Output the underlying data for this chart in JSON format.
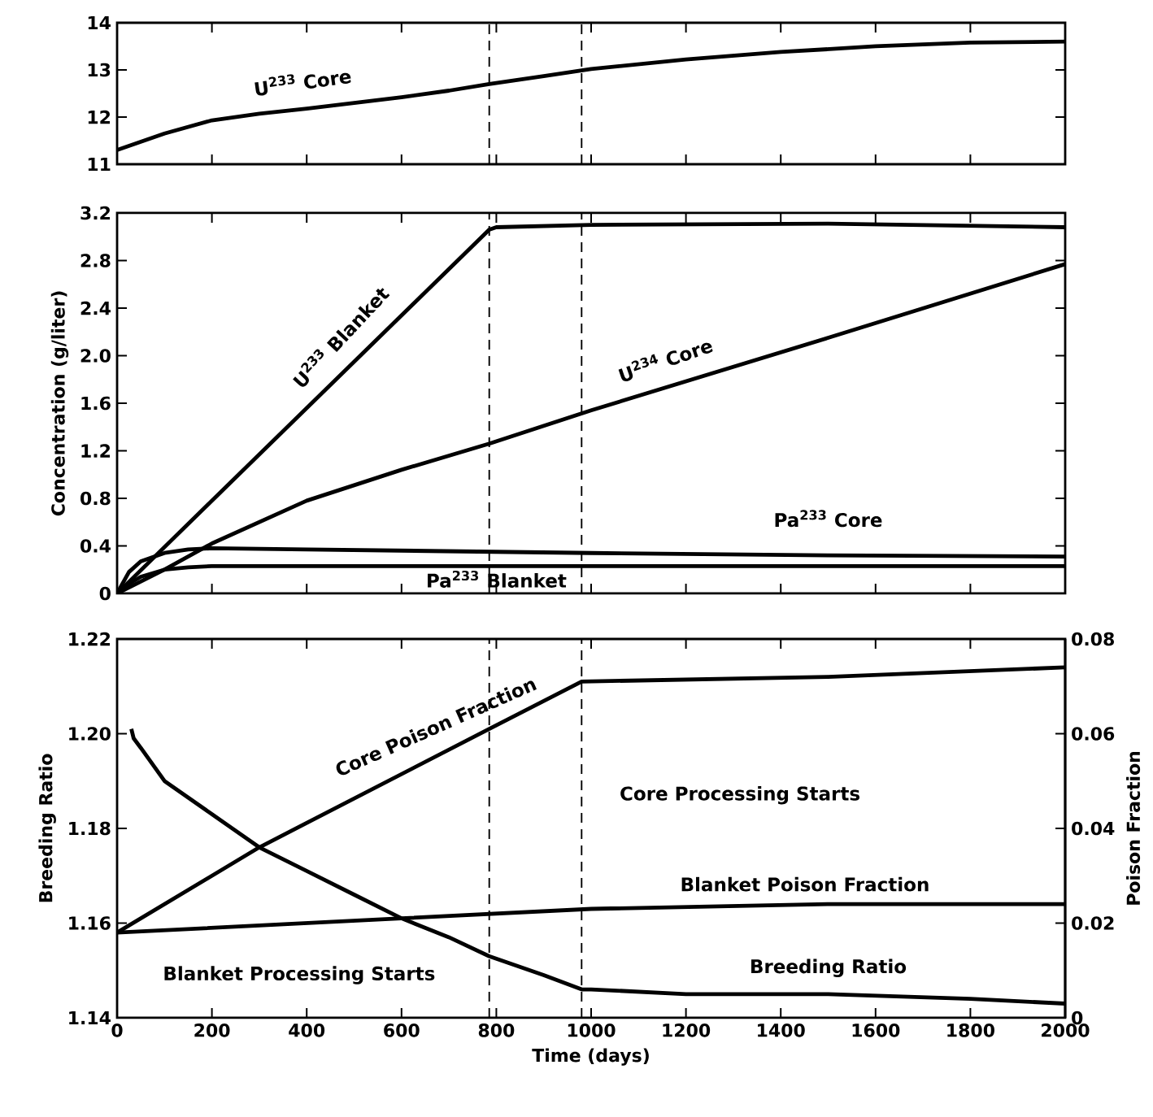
{
  "chart_data": [
    {
      "type": "line",
      "xlim": [
        0,
        2000
      ],
      "xticks": [
        0,
        200,
        400,
        600,
        800,
        1000,
        1200,
        1400,
        1600,
        1800,
        2000
      ],
      "ylim": [
        11,
        14
      ],
      "yticks": [
        11,
        12,
        13,
        14
      ],
      "tick_labels": "y",
      "ref_lines": [
        {
          "axis": "x",
          "value": 785,
          "color": "#000000",
          "line_style": "dashed"
        },
        {
          "axis": "x",
          "value": 980,
          "color": "#000000",
          "line_style": "dashed"
        }
      ],
      "series": [
        {
          "name": "U$^{233}$ Core",
          "color": "#000000",
          "x": [
            0,
            100,
            200,
            300,
            400,
            500,
            600,
            700,
            785,
            900,
            1000,
            1200,
            1400,
            1600,
            1800,
            2000
          ],
          "values": [
            11.3,
            11.65,
            11.93,
            12.07,
            12.18,
            12.3,
            12.42,
            12.56,
            12.7,
            12.87,
            13.02,
            13.22,
            13.38,
            13.5,
            13.58,
            13.6
          ]
        }
      ]
    },
    {
      "type": "line",
      "xlim": [
        0,
        2000
      ],
      "xticks": [
        0,
        200,
        400,
        600,
        800,
        1000,
        1200,
        1400,
        1600,
        1800,
        2000
      ],
      "ylim": [
        0,
        3.2
      ],
      "yticks": [
        0,
        0.4,
        0.8,
        1.2,
        1.6,
        {
          "value": 2,
          "label": "2.0"
        },
        2.4,
        2.8,
        3.2
      ],
      "tick_labels": "y",
      "ylabel": "Concentration (g/liter)",
      "ref_lines": [
        {
          "axis": "x",
          "value": 785,
          "color": "#000000",
          "line_style": "dashed"
        },
        {
          "axis": "x",
          "value": 980,
          "color": "#000000",
          "line_style": "dashed"
        }
      ],
      "series": [
        {
          "name": "U$^{233}$ Blanket",
          "color": "#000000",
          "x": [
            0,
            785,
            800,
            1000,
            1500,
            2000
          ],
          "values": [
            0,
            3.06,
            3.08,
            3.1,
            3.11,
            3.08
          ]
        },
        {
          "name": "U$^{234}$ Core",
          "color": "#000000",
          "x": [
            0,
            100,
            200,
            400,
            600,
            785,
            1000,
            1500,
            2000
          ],
          "values": [
            0,
            0.2,
            0.42,
            0.78,
            1.04,
            1.26,
            1.54,
            2.15,
            2.77
          ]
        },
        {
          "name": "Pa$^{233}$ Core",
          "color": "#000000",
          "x": [
            0,
            25,
            50,
            100,
            150,
            200,
            400,
            1000,
            1500,
            2000
          ],
          "values": [
            0,
            0.18,
            0.27,
            0.34,
            0.37,
            0.38,
            0.37,
            0.34,
            0.32,
            0.31
          ]
        },
        {
          "name": "Pa$^{233}$ Blanket",
          "color": "#000000",
          "x": [
            0,
            25,
            50,
            100,
            150,
            200,
            400,
            1000,
            2000
          ],
          "values": [
            0,
            0.08,
            0.14,
            0.2,
            0.22,
            0.23,
            0.23,
            0.23,
            0.23
          ]
        }
      ]
    },
    {
      "type": "line",
      "xlim": [
        0,
        2000
      ],
      "xticks": [
        0,
        200,
        400,
        600,
        800,
        1000,
        1200,
        1400,
        1600,
        1800,
        2000
      ],
      "ylim": [
        1.14,
        1.22
      ],
      "yticks": [
        1.14,
        1.16,
        1.18,
        {
          "value": 1.2,
          "label": "1.20"
        },
        1.22
      ],
      "y2lim": [
        0,
        0.08
      ],
      "y2ticks": [
        0,
        0.02,
        0.04,
        0.06,
        0.08
      ],
      "xlabel": "Time (days)",
      "ylabel": "Breeding Ratio",
      "y2label": "Poison Fraction",
      "ref_lines": [
        {
          "axis": "x",
          "value": 785,
          "color": "#000000",
          "line_style": "dashed"
        },
        {
          "axis": "x",
          "value": 980,
          "color": "#000000",
          "line_style": "dashed"
        }
      ],
      "annotations": [
        "Blanket Processing Starts",
        "Core Processing Starts"
      ],
      "series": [
        {
          "name": "Breeding Ratio",
          "color": "#000000",
          "x": [
            30,
            35,
            50,
            100,
            200,
            300,
            400,
            500,
            600,
            700,
            785,
            900,
            980,
            1000,
            1200,
            1500,
            1800,
            2000
          ],
          "values": [
            1.201,
            1.199,
            1.197,
            1.19,
            1.183,
            1.176,
            1.171,
            1.166,
            1.161,
            1.157,
            1.153,
            1.149,
            1.146,
            1.146,
            1.145,
            1.145,
            1.144,
            1.143
          ]
        },
        {
          "name": "Core Poison Fraction",
          "axis": "y2",
          "color": "#000000",
          "x": [
            0,
            300,
            785,
            980,
            1500,
            2000
          ],
          "values": [
            0.018,
            0.036,
            0.061,
            0.071,
            0.072,
            0.074
          ]
        },
        {
          "name": "Blanket Poison Fraction",
          "axis": "y2",
          "color": "#000000",
          "x": [
            0,
            600,
            1000,
            1500,
            2000
          ],
          "values": [
            0.018,
            0.021,
            0.023,
            0.024,
            0.024
          ]
        }
      ]
    }
  ]
}
